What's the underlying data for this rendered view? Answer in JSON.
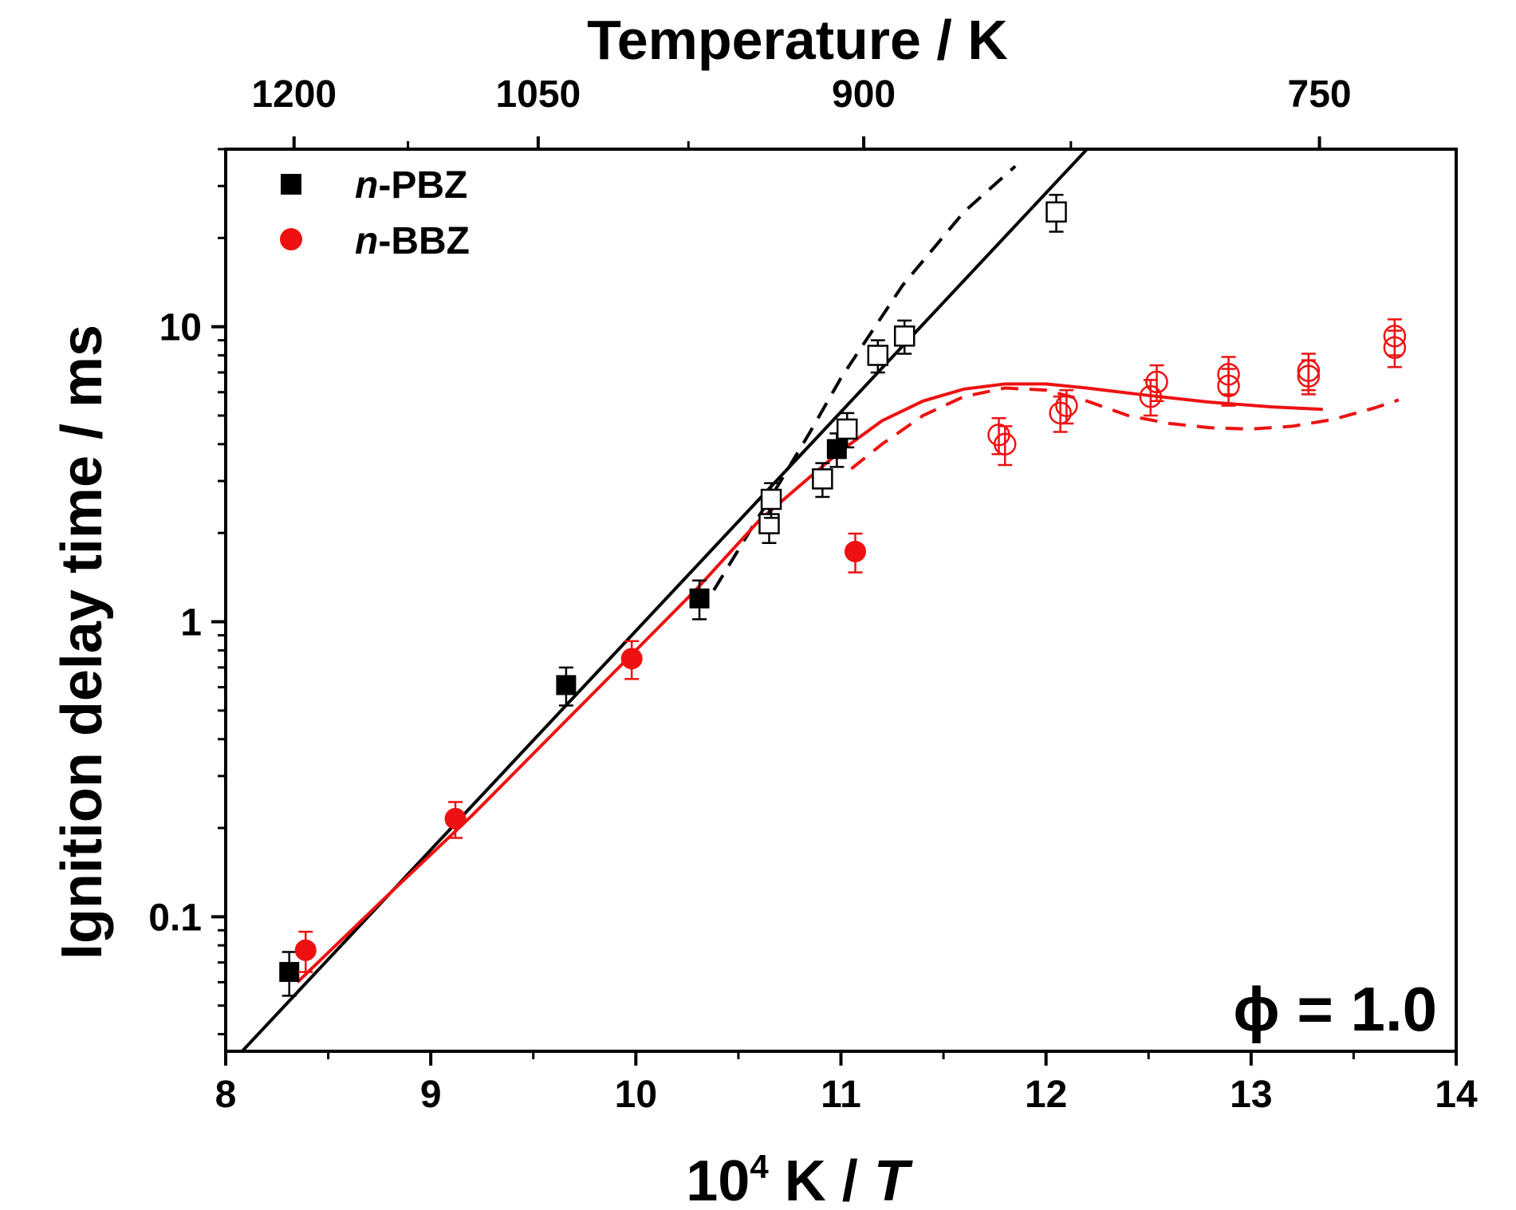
{
  "chart_data": {
    "type": "scatter",
    "xlabel": {
      "base": "10",
      "sup": "4",
      "rest": " K / ",
      "italic": "T"
    },
    "ylabel": "Ignition delay time / ms",
    "top_xlabel": "Temperature / K",
    "xlim": [
      8,
      14
    ],
    "ylim": [
      0.035,
      40
    ],
    "y_scale": "log",
    "x_ticks": [
      "8",
      "9",
      "10",
      "11",
      "12",
      "13",
      "14"
    ],
    "y_ticks": [
      "0.1",
      "1",
      "10"
    ],
    "top_ticks": [
      {
        "label": "1200",
        "temperature_K": 1200
      },
      {
        "label": "1050",
        "temperature_K": 1050
      },
      {
        "label": "900",
        "temperature_K": 900
      },
      {
        "label": "750",
        "temperature_K": 750
      }
    ],
    "top_minor_temperatures_K": [
      1125,
      975,
      825
    ],
    "annotation": "ϕ = 1.0",
    "legend": {
      "position": "top-left",
      "entries": [
        {
          "prefix": "n",
          "rest": "-PBZ",
          "marker": "square",
          "color": "#000000"
        },
        {
          "prefix": "n",
          "rest": "-BBZ",
          "marker": "circle",
          "color": "#ee1111"
        }
      ]
    },
    "series": [
      {
        "name": "n-PBZ",
        "marker": "square",
        "fill": "filled",
        "color": "#000000",
        "points": [
          {
            "x": 8.31,
            "y": 0.065,
            "err": 0.011
          },
          {
            "x": 9.66,
            "y": 0.61,
            "err": 0.09
          },
          {
            "x": 10.31,
            "y": 1.2,
            "err": 0.18
          },
          {
            "x": 10.98,
            "y": 3.85,
            "err": 0.5
          }
        ]
      },
      {
        "name": "n-PBZ",
        "marker": "square",
        "fill": "open",
        "color": "#000000",
        "points": [
          {
            "x": 10.65,
            "y": 2.15,
            "err": 0.3
          },
          {
            "x": 10.66,
            "y": 2.6,
            "err": 0.35
          },
          {
            "x": 10.91,
            "y": 3.05,
            "err": 0.4
          },
          {
            "x": 11.03,
            "y": 4.5,
            "err": 0.6
          },
          {
            "x": 11.18,
            "y": 8.0,
            "err": 1.0
          },
          {
            "x": 11.31,
            "y": 9.3,
            "err": 1.2
          },
          {
            "x": 12.05,
            "y": 24.5,
            "err": 3.5
          }
        ]
      },
      {
        "name": "n-BBZ",
        "marker": "circle",
        "fill": "filled",
        "color": "#ee1111",
        "points": [
          {
            "x": 8.39,
            "y": 0.077,
            "err": 0.012
          },
          {
            "x": 9.12,
            "y": 0.215,
            "err": 0.03
          },
          {
            "x": 9.98,
            "y": 0.75,
            "err": 0.11
          },
          {
            "x": 11.07,
            "y": 1.73,
            "err": 0.26
          }
        ]
      },
      {
        "name": "n-BBZ",
        "marker": "circle",
        "fill": "open",
        "color": "#ee1111",
        "points": [
          {
            "x": 11.77,
            "y": 4.3,
            "err": 0.6
          },
          {
            "x": 11.8,
            "y": 4.0,
            "err": 0.6
          },
          {
            "x": 12.07,
            "y": 5.1,
            "err": 0.7
          },
          {
            "x": 12.1,
            "y": 5.4,
            "err": 0.7
          },
          {
            "x": 12.51,
            "y": 5.8,
            "err": 0.8
          },
          {
            "x": 12.54,
            "y": 6.5,
            "err": 0.9
          },
          {
            "x": 12.89,
            "y": 6.3,
            "err": 0.9
          },
          {
            "x": 12.89,
            "y": 6.9,
            "err": 1.0
          },
          {
            "x": 13.28,
            "y": 6.8,
            "err": 0.9
          },
          {
            "x": 13.28,
            "y": 7.1,
            "err": 1.0
          },
          {
            "x": 13.7,
            "y": 8.5,
            "err": 1.2
          },
          {
            "x": 13.7,
            "y": 9.3,
            "err": 1.3
          }
        ]
      }
    ],
    "lines": [
      {
        "id": "pbz-solid",
        "color": "#000000",
        "style": "solid",
        "points": [
          [
            8.08,
            0.035
          ],
          [
            12.2,
            40
          ]
        ]
      },
      {
        "id": "pbz-dashed",
        "color": "#000000",
        "style": "dashed",
        "points": [
          [
            10.38,
            1.28
          ],
          [
            10.55,
            2.0
          ],
          [
            10.7,
            2.95
          ],
          [
            10.85,
            4.4
          ],
          [
            11.0,
            6.7
          ],
          [
            11.3,
            13.8
          ],
          [
            11.6,
            24.5
          ],
          [
            11.85,
            35
          ]
        ]
      },
      {
        "id": "bbz-solid",
        "color": "#ee1111",
        "style": "solid",
        "points": [
          [
            8.35,
            0.06
          ],
          [
            8.8,
            0.12
          ],
          [
            9.2,
            0.22
          ],
          [
            9.6,
            0.42
          ],
          [
            10.0,
            0.8
          ],
          [
            10.3,
            1.3
          ],
          [
            10.6,
            2.2
          ],
          [
            10.85,
            3.1
          ],
          [
            11.0,
            3.8
          ],
          [
            11.2,
            4.8
          ],
          [
            11.4,
            5.6
          ],
          [
            11.6,
            6.15
          ],
          [
            11.8,
            6.4
          ],
          [
            12.0,
            6.4
          ],
          [
            12.2,
            6.2
          ],
          [
            12.5,
            5.85
          ],
          [
            12.8,
            5.55
          ],
          [
            13.1,
            5.35
          ],
          [
            13.35,
            5.25
          ]
        ]
      },
      {
        "id": "bbz-dashed",
        "color": "#ee1111",
        "style": "dashed",
        "points": [
          [
            11.05,
            3.3
          ],
          [
            11.2,
            4.0
          ],
          [
            11.4,
            5.0
          ],
          [
            11.6,
            5.8
          ],
          [
            11.8,
            6.2
          ],
          [
            12.0,
            6.1
          ],
          [
            12.2,
            5.6
          ],
          [
            12.4,
            5.0
          ],
          [
            12.6,
            4.7
          ],
          [
            12.8,
            4.55
          ],
          [
            13.0,
            4.5
          ],
          [
            13.2,
            4.6
          ],
          [
            13.4,
            4.85
          ],
          [
            13.6,
            5.3
          ],
          [
            13.72,
            5.65
          ]
        ]
      }
    ]
  }
}
